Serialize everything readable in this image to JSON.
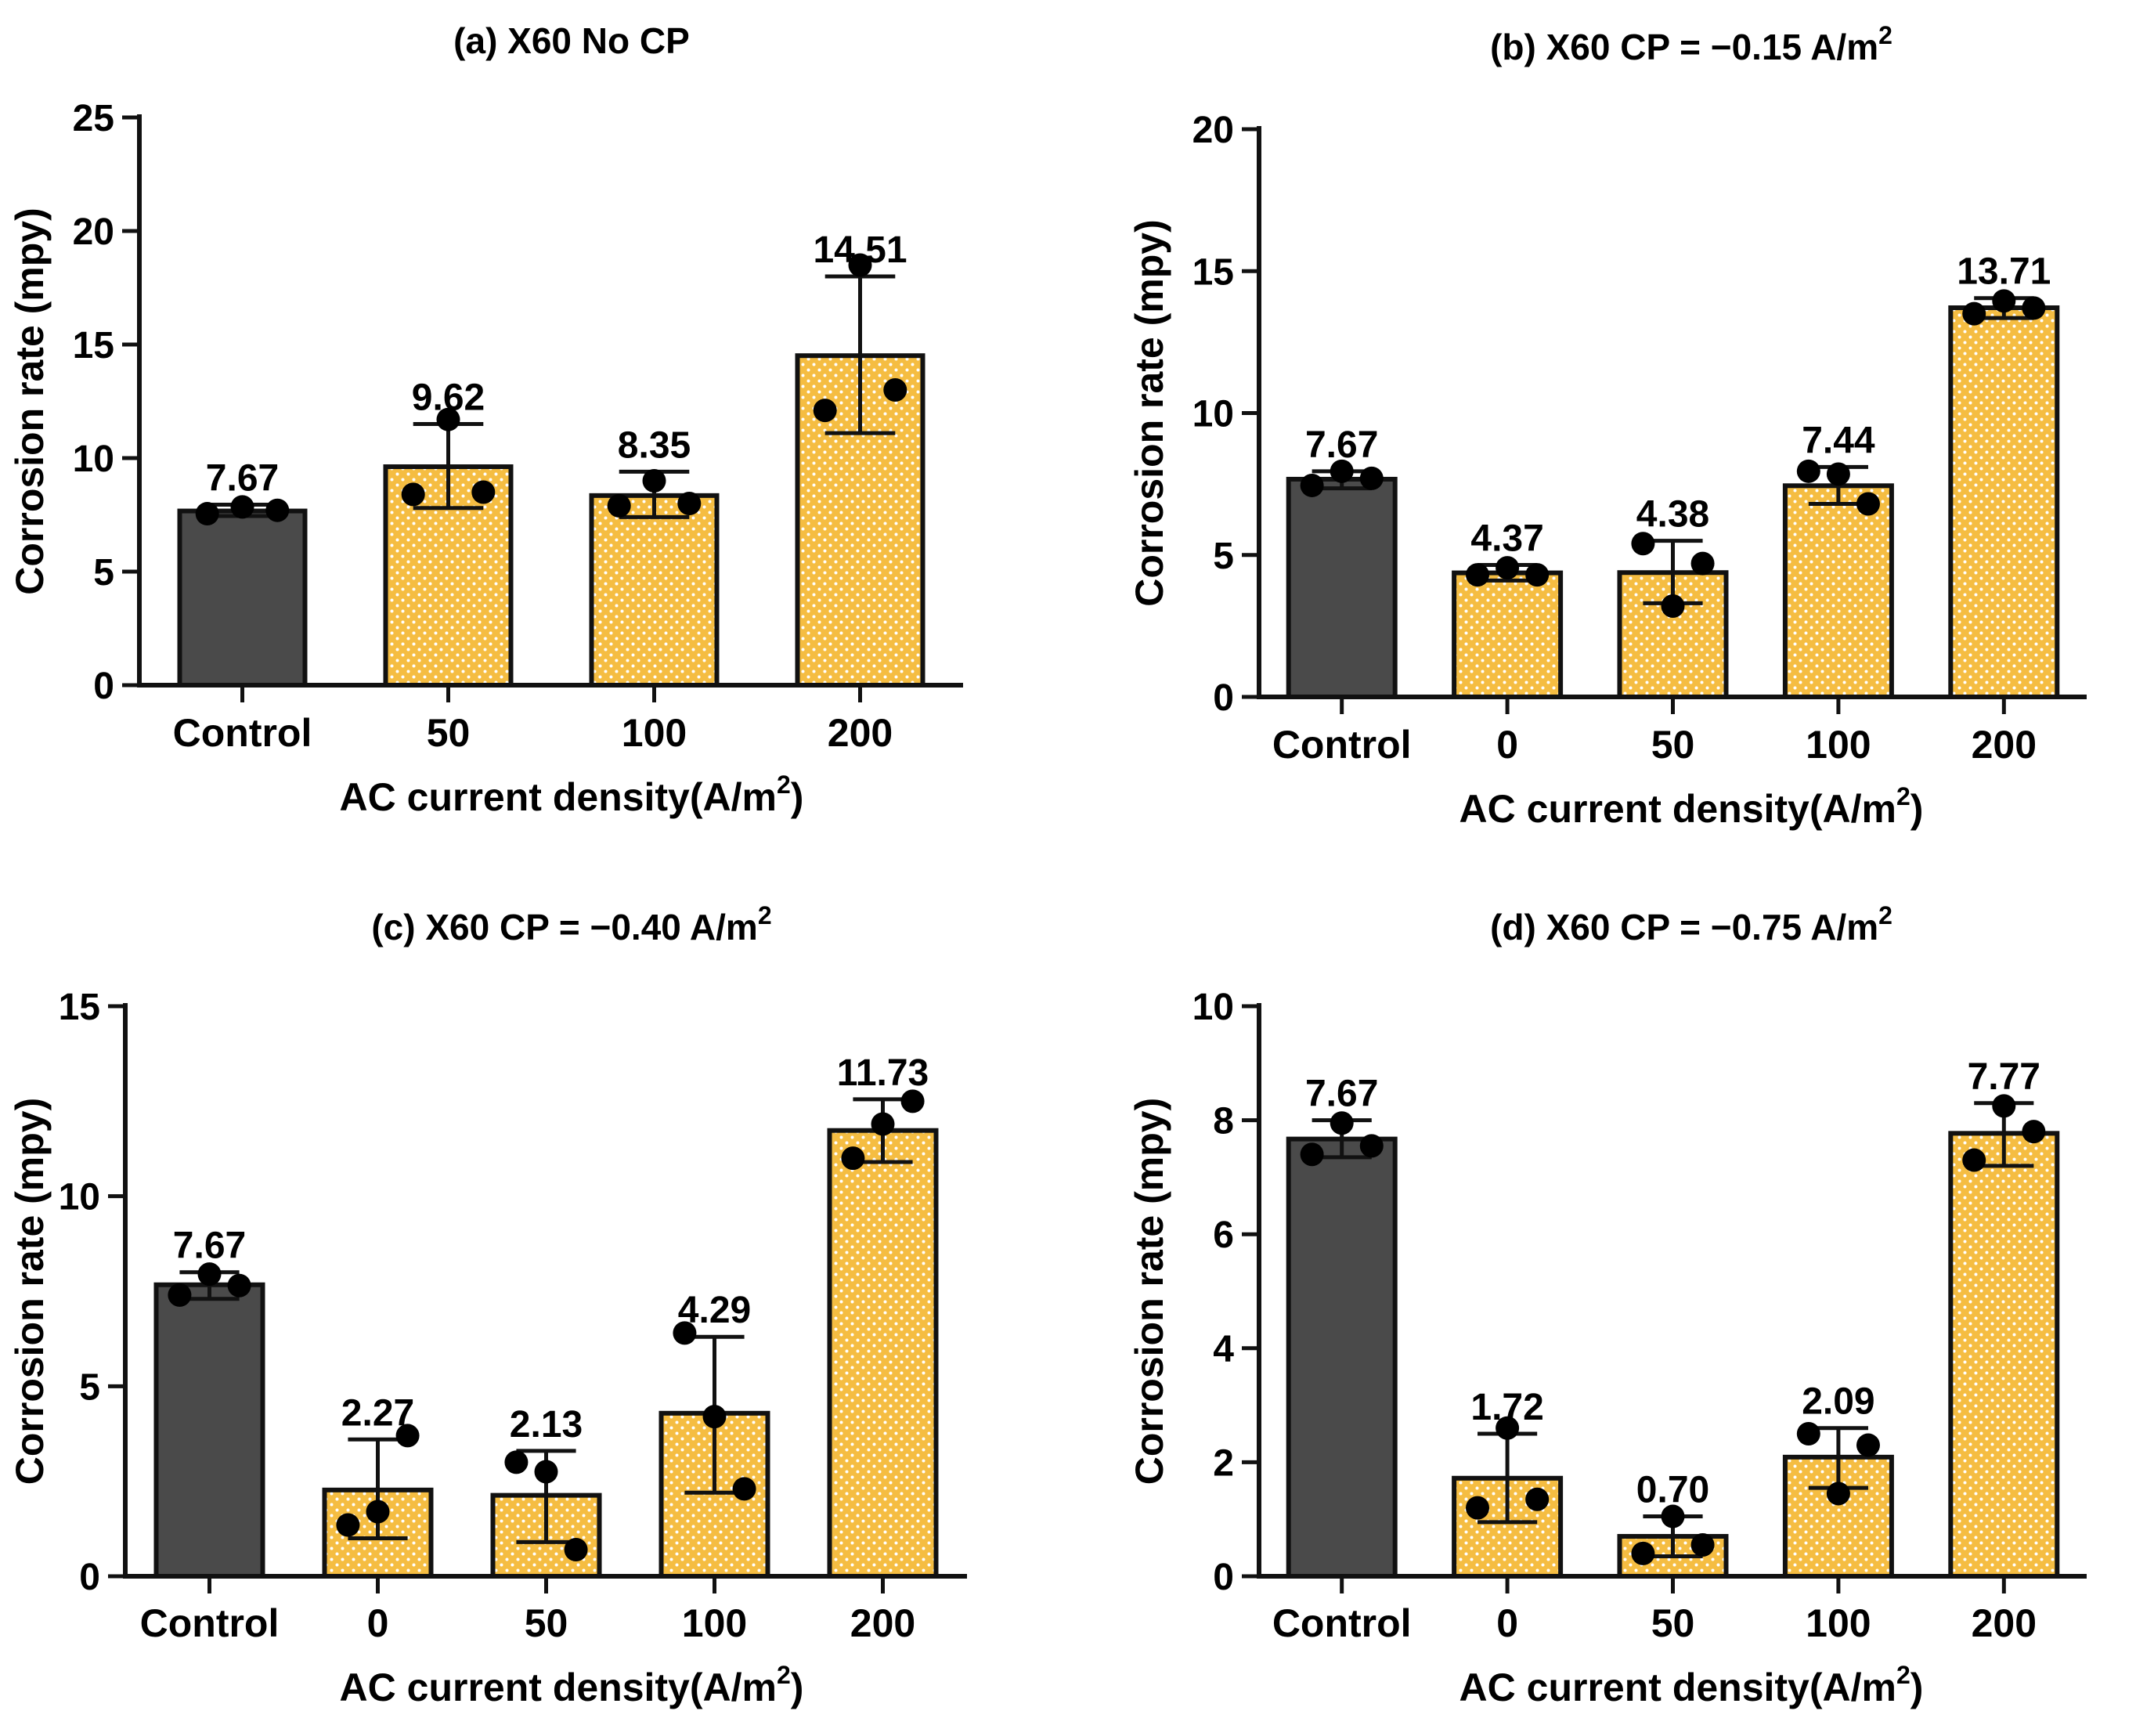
{
  "figure": {
    "xlabel_main": "AC current density(A/m",
    "xlabel_sup": "2",
    "xlabel_end": ")",
    "ylabel": "Corrosion rate (mpy)"
  },
  "colors": {
    "control_fill": "#4a4a4a",
    "treat_fill": "#f5bd42",
    "dot_pattern": "#ffffff",
    "stroke": "#111111"
  },
  "chart_data": [
    {
      "type": "bar",
      "title_main": "(a) X60 No CP",
      "title_sup": "",
      "categories": [
        "Control",
        "50",
        "100",
        "200"
      ],
      "values": [
        7.67,
        9.62,
        8.35,
        14.51
      ],
      "value_labels": [
        "7.67",
        "9.62",
        "8.35",
        "14.51"
      ],
      "error_low": [
        7.45,
        7.8,
        7.4,
        11.1
      ],
      "error_high": [
        7.95,
        11.5,
        9.4,
        18.0
      ],
      "points": [
        [
          7.55,
          7.85,
          7.7
        ],
        [
          8.4,
          11.7,
          8.5
        ],
        [
          7.9,
          9.0,
          8.0
        ],
        [
          12.1,
          18.5,
          13.0
        ]
      ],
      "ylim": [
        0,
        25
      ],
      "yticks": [
        0,
        5,
        10,
        15,
        20,
        25
      ],
      "xlabel": "AC current density(A/m2)",
      "ylabel": "Corrosion rate (mpy)"
    },
    {
      "type": "bar",
      "title_main": "(b) X60 CP =  −0.15 A/m",
      "title_sup": "2",
      "categories": [
        "Control",
        "0",
        "50",
        "100",
        "200"
      ],
      "values": [
        7.67,
        4.37,
        4.38,
        7.44,
        13.71
      ],
      "value_labels": [
        "7.67",
        "4.37",
        "4.38",
        "7.44",
        "13.71"
      ],
      "error_low": [
        7.35,
        4.1,
        3.3,
        6.8,
        13.35
      ],
      "error_high": [
        7.95,
        4.65,
        5.5,
        8.1,
        14.05
      ],
      "points": [
        [
          7.45,
          7.95,
          7.7
        ],
        [
          4.3,
          4.55,
          4.3
        ],
        [
          5.4,
          3.2,
          4.7
        ],
        [
          7.95,
          7.85,
          6.8
        ],
        [
          13.5,
          13.95,
          13.7
        ]
      ],
      "ylim": [
        0,
        20
      ],
      "yticks": [
        0,
        5,
        10,
        15,
        20
      ],
      "xlabel": "AC current density(A/m2)",
      "ylabel": "Corrosion rate (mpy)"
    },
    {
      "type": "bar",
      "title_main": "(c) X60 CP =  −0.40 A/m",
      "title_sup": "2",
      "categories": [
        "Control",
        "0",
        "50",
        "100",
        "200"
      ],
      "values": [
        7.67,
        2.27,
        2.13,
        4.29,
        11.73
      ],
      "value_labels": [
        "7.67",
        "2.27",
        "2.13",
        "4.29",
        "11.73"
      ],
      "error_low": [
        7.3,
        1.0,
        0.9,
        2.2,
        10.9
      ],
      "error_high": [
        8.0,
        3.6,
        3.3,
        6.3,
        12.55
      ],
      "points": [
        [
          7.4,
          7.95,
          7.65
        ],
        [
          1.35,
          1.7,
          3.7
        ],
        [
          3.0,
          2.75,
          0.7
        ],
        [
          6.4,
          4.2,
          2.3
        ],
        [
          11.0,
          11.9,
          12.5
        ]
      ],
      "ylim": [
        0,
        15
      ],
      "yticks": [
        0,
        5,
        10,
        15
      ],
      "xlabel": "AC current density(A/m2)",
      "ylabel": "Corrosion rate (mpy)"
    },
    {
      "type": "bar",
      "title_main": "(d) X60 CP =  −0.75 A/m",
      "title_sup": "2",
      "categories": [
        "Control",
        "0",
        "50",
        "100",
        "200"
      ],
      "values": [
        7.67,
        1.72,
        0.7,
        2.09,
        7.77
      ],
      "value_labels": [
        "7.67",
        "1.72",
        "0.70",
        "2.09",
        "7.77"
      ],
      "error_low": [
        7.35,
        0.95,
        0.35,
        1.55,
        7.2
      ],
      "error_high": [
        8.0,
        2.5,
        1.05,
        2.6,
        8.3
      ],
      "points": [
        [
          7.4,
          7.95,
          7.55
        ],
        [
          1.2,
          2.6,
          1.35
        ],
        [
          0.4,
          1.05,
          0.55
        ],
        [
          2.5,
          1.45,
          2.3
        ],
        [
          7.3,
          8.25,
          7.8
        ]
      ],
      "ylim": [
        0,
        10
      ],
      "yticks": [
        0,
        2,
        4,
        6,
        8,
        10
      ],
      "xlabel": "AC current density(A/m2)",
      "ylabel": "Corrosion rate (mpy)"
    }
  ]
}
